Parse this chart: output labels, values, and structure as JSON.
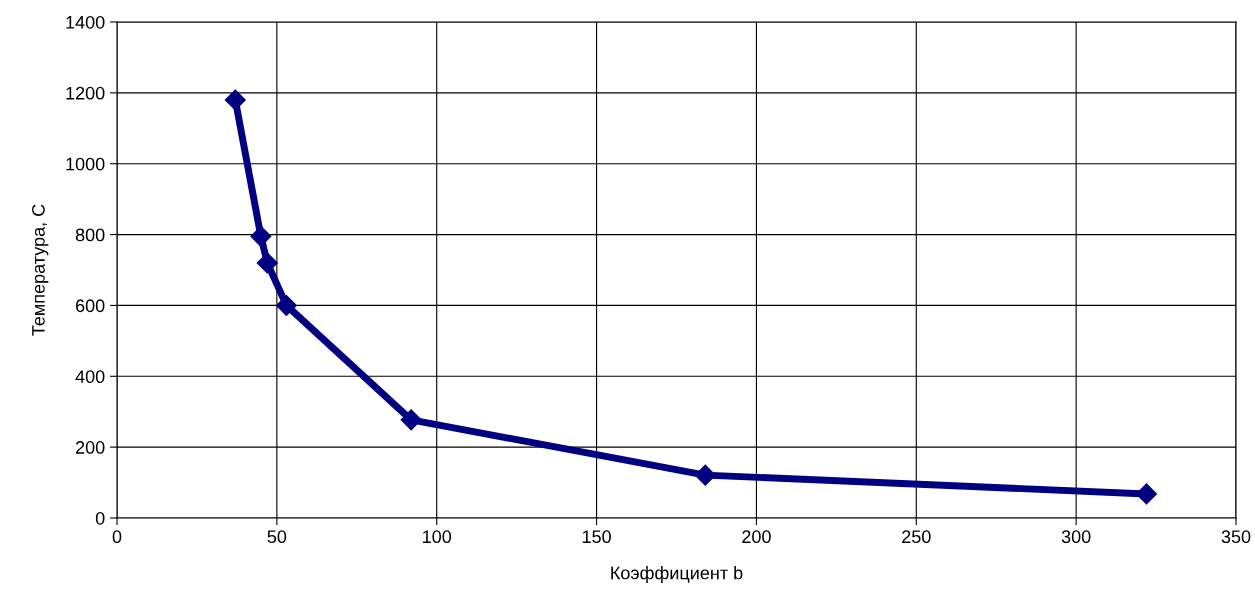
{
  "chart_data": {
    "type": "line",
    "xlabel": "Коэффициент b",
    "ylabel": "Температура, С",
    "x": [
      37,
      45,
      47,
      53,
      92,
      184,
      322
    ],
    "series": [
      {
        "color": "#000080",
        "values": [
          1180,
          795,
          720,
          600,
          277,
          121,
          68
        ]
      }
    ],
    "xlim": [
      0,
      350
    ],
    "xticks": [
      0,
      50,
      100,
      150,
      200,
      250,
      300,
      350
    ],
    "ylim": [
      0,
      1400
    ],
    "yticks": [
      0,
      200,
      400,
      600,
      800,
      1000,
      1200,
      1400
    ],
    "grid": true,
    "marker": "diamond",
    "line_style": "solid"
  }
}
